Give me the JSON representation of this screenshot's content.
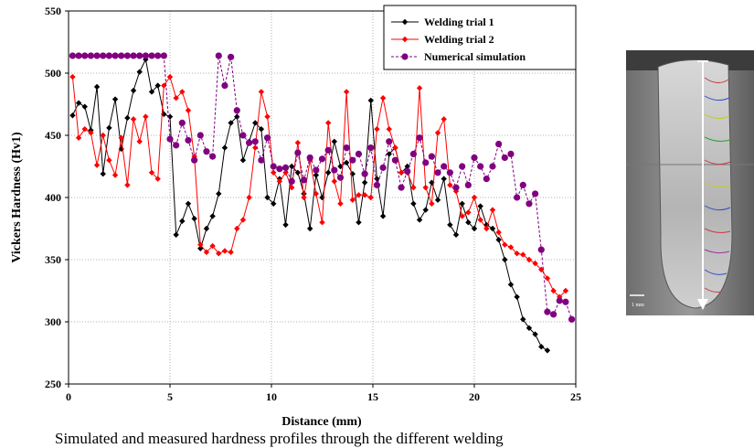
{
  "caption": "Simulated and measured hardness profiles through the different welding",
  "chart_data": {
    "type": "line",
    "title": "",
    "xlabel": "Distance (mm)",
    "ylabel": "Vickers Hardness (Hv1)",
    "xlim": [
      0,
      25
    ],
    "ylim": [
      250,
      550
    ],
    "xticks": [
      "0",
      "5",
      "10",
      "15",
      "20",
      "25"
    ],
    "yticks": [
      "250",
      "300",
      "350",
      "400",
      "450",
      "500",
      "550"
    ],
    "grid": "dotted",
    "legend_position": "top-right",
    "series": [
      {
        "name": "Welding trial 1",
        "color": "#000000",
        "marker": "diamond",
        "dashed": false,
        "x": [
          0.2,
          0.5,
          0.8,
          1.1,
          1.4,
          1.7,
          2.0,
          2.3,
          2.6,
          2.9,
          3.2,
          3.5,
          3.8,
          4.1,
          4.4,
          4.7,
          5.0,
          5.3,
          5.6,
          5.9,
          6.2,
          6.5,
          6.8,
          7.1,
          7.4,
          7.7,
          8.0,
          8.3,
          8.6,
          8.9,
          9.2,
          9.5,
          9.8,
          10.1,
          10.4,
          10.7,
          11.0,
          11.3,
          11.6,
          11.9,
          12.2,
          12.5,
          12.8,
          13.1,
          13.4,
          13.7,
          14.0,
          14.3,
          14.6,
          14.9,
          15.2,
          15.5,
          15.8,
          16.1,
          16.4,
          16.7,
          17.0,
          17.3,
          17.6,
          17.9,
          18.2,
          18.5,
          18.8,
          19.1,
          19.4,
          19.7,
          20.0,
          20.3,
          20.6,
          20.9,
          21.2,
          21.5,
          21.8,
          22.1,
          22.4,
          22.7,
          23.0,
          23.3,
          23.6
        ],
        "values": [
          466,
          476,
          473,
          454,
          489,
          419,
          456,
          479,
          439,
          464,
          486,
          501,
          511,
          485,
          490,
          467,
          465,
          370,
          381,
          395,
          383,
          359,
          375,
          385,
          403,
          440,
          460,
          465,
          430,
          445,
          460,
          455,
          400,
          395,
          415,
          378,
          425,
          420,
          403,
          375,
          418,
          400,
          420,
          445,
          425,
          428,
          419,
          380,
          412,
          478,
          415,
          385,
          435,
          440,
          420,
          425,
          395,
          382,
          390,
          412,
          398,
          415,
          378,
          370,
          395,
          380,
          375,
          393,
          378,
          375,
          366,
          350,
          330,
          320,
          302,
          295,
          290,
          280,
          277
        ]
      },
      {
        "name": "Welding trial 2",
        "color": "#ff0000",
        "marker": "diamond",
        "dashed": false,
        "x": [
          0.2,
          0.5,
          0.8,
          1.1,
          1.4,
          1.7,
          2.0,
          2.3,
          2.6,
          2.9,
          3.2,
          3.5,
          3.8,
          4.1,
          4.4,
          4.7,
          5.0,
          5.3,
          5.6,
          5.9,
          6.2,
          6.5,
          6.8,
          7.1,
          7.4,
          7.7,
          8.0,
          8.3,
          8.6,
          8.9,
          9.2,
          9.5,
          9.8,
          10.1,
          10.4,
          10.7,
          11.0,
          11.3,
          11.6,
          11.9,
          12.2,
          12.5,
          12.8,
          13.1,
          13.4,
          13.7,
          14.0,
          14.3,
          14.6,
          14.9,
          15.2,
          15.5,
          15.8,
          16.1,
          16.4,
          16.7,
          17.0,
          17.3,
          17.6,
          17.9,
          18.2,
          18.5,
          18.8,
          19.1,
          19.4,
          19.7,
          20.0,
          20.3,
          20.6,
          20.9,
          21.2,
          21.5,
          21.8,
          22.1,
          22.4,
          22.7,
          23.0,
          23.3,
          23.6,
          23.9,
          24.2,
          24.5
        ],
        "values": [
          497,
          448,
          455,
          452,
          426,
          450,
          430,
          418,
          448,
          410,
          463,
          445,
          465,
          420,
          415,
          490,
          497,
          480,
          485,
          470,
          433,
          362,
          356,
          361,
          355,
          357,
          356,
          375,
          382,
          400,
          440,
          485,
          465,
          420,
          413,
          420,
          408,
          444,
          400,
          430,
          403,
          380,
          460,
          413,
          395,
          485,
          398,
          402,
          402,
          400,
          455,
          480,
          455,
          440,
          420,
          420,
          408,
          488,
          408,
          395,
          452,
          463,
          410,
          405,
          385,
          388,
          400,
          382,
          375,
          390,
          372,
          362,
          360,
          355,
          354,
          350,
          347,
          342,
          335,
          325,
          320,
          325
        ]
      },
      {
        "name": "Numerical simulation",
        "color": "#800080",
        "marker": "circle",
        "dashed": true,
        "x": [
          0.2,
          0.5,
          0.8,
          1.1,
          1.4,
          1.7,
          2.0,
          2.3,
          2.6,
          2.9,
          3.2,
          3.5,
          3.8,
          4.1,
          4.4,
          4.7,
          5.0,
          5.3,
          5.6,
          5.9,
          6.2,
          6.5,
          6.8,
          7.1,
          7.4,
          7.7,
          8.0,
          8.3,
          8.6,
          8.9,
          9.2,
          9.5,
          9.8,
          10.1,
          10.4,
          10.7,
          11.0,
          11.3,
          11.6,
          11.9,
          12.2,
          12.5,
          12.8,
          13.1,
          13.4,
          13.7,
          14.0,
          14.3,
          14.6,
          14.9,
          15.2,
          15.5,
          15.8,
          16.1,
          16.4,
          16.7,
          17.0,
          17.3,
          17.6,
          17.9,
          18.2,
          18.5,
          18.8,
          19.1,
          19.4,
          19.7,
          20.0,
          20.3,
          20.6,
          20.9,
          21.2,
          21.5,
          21.8,
          22.1,
          22.4,
          22.7,
          23.0,
          23.3,
          23.6,
          23.9,
          24.2,
          24.5,
          24.8
        ],
        "values": [
          514,
          514,
          514,
          514,
          514,
          514,
          514,
          514,
          514,
          514,
          514,
          514,
          514,
          514,
          514,
          514,
          447,
          442,
          460,
          446,
          430,
          450,
          437,
          433,
          514,
          490,
          513,
          470,
          450,
          444,
          445,
          430,
          448,
          425,
          423,
          424,
          413,
          436,
          414,
          432,
          422,
          431,
          438,
          422,
          416,
          440,
          430,
          435,
          419,
          440,
          410,
          424,
          445,
          430,
          408,
          421,
          435,
          448,
          428,
          433,
          420,
          425,
          420,
          408,
          425,
          410,
          432,
          425,
          415,
          425,
          443,
          432,
          435,
          400,
          410,
          395,
          403,
          358,
          308,
          306,
          317,
          316,
          302
        ]
      }
    ]
  },
  "photo": {
    "scale_label": "1 mm"
  }
}
